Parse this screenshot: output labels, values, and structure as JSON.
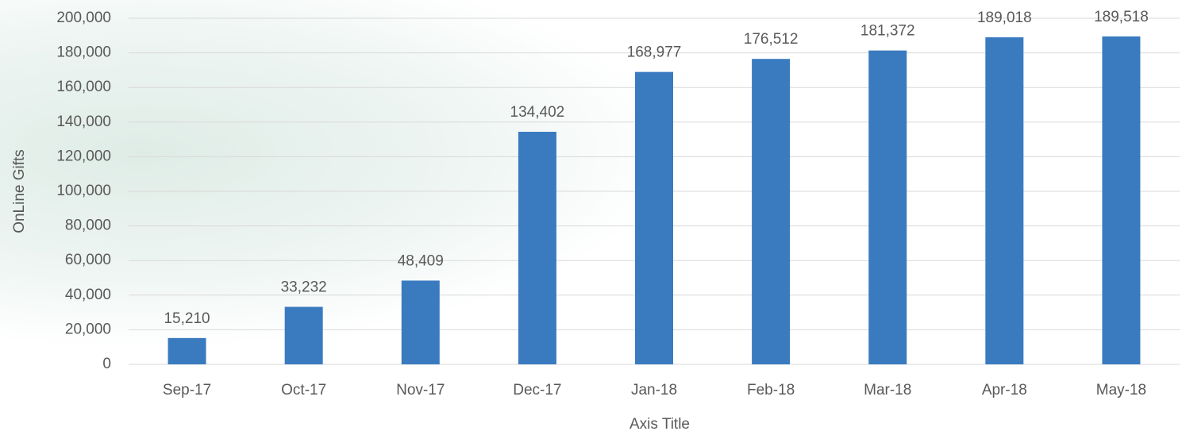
{
  "chart_data": {
    "type": "bar",
    "categories": [
      "Sep-17",
      "Oct-17",
      "Nov-17",
      "Dec-17",
      "Jan-18",
      "Feb-18",
      "Mar-18",
      "Apr-18",
      "May-18"
    ],
    "values": [
      15210,
      33232,
      48409,
      134402,
      168977,
      176512,
      181372,
      189018,
      189518
    ],
    "value_labels": [
      "15,210",
      "33,232",
      "48,409",
      "134,402",
      "168,977",
      "176,512",
      "181,372",
      "189,018",
      "189,518"
    ],
    "color": "#3a7bc0",
    "ylim": [
      0,
      200000
    ],
    "yticks": [
      0,
      {
        "value": 20000,
        "label": "20,000"
      },
      {
        "value": 40000,
        "label": "40,000"
      },
      {
        "value": 60000,
        "label": "60,000"
      },
      {
        "value": 80000,
        "label": "80,000"
      },
      {
        "value": 100000,
        "label": "100,000"
      },
      {
        "value": 120000,
        "label": "120,000"
      },
      {
        "value": 140000,
        "label": "140,000"
      },
      {
        "value": 160000,
        "label": "160,000"
      },
      {
        "value": 180000,
        "label": "180,000"
      },
      {
        "value": 200000,
        "label": "200,000"
      }
    ],
    "grid": true,
    "ylabel": "OnLine Gifts",
    "xlabel": "Axis Title"
  }
}
